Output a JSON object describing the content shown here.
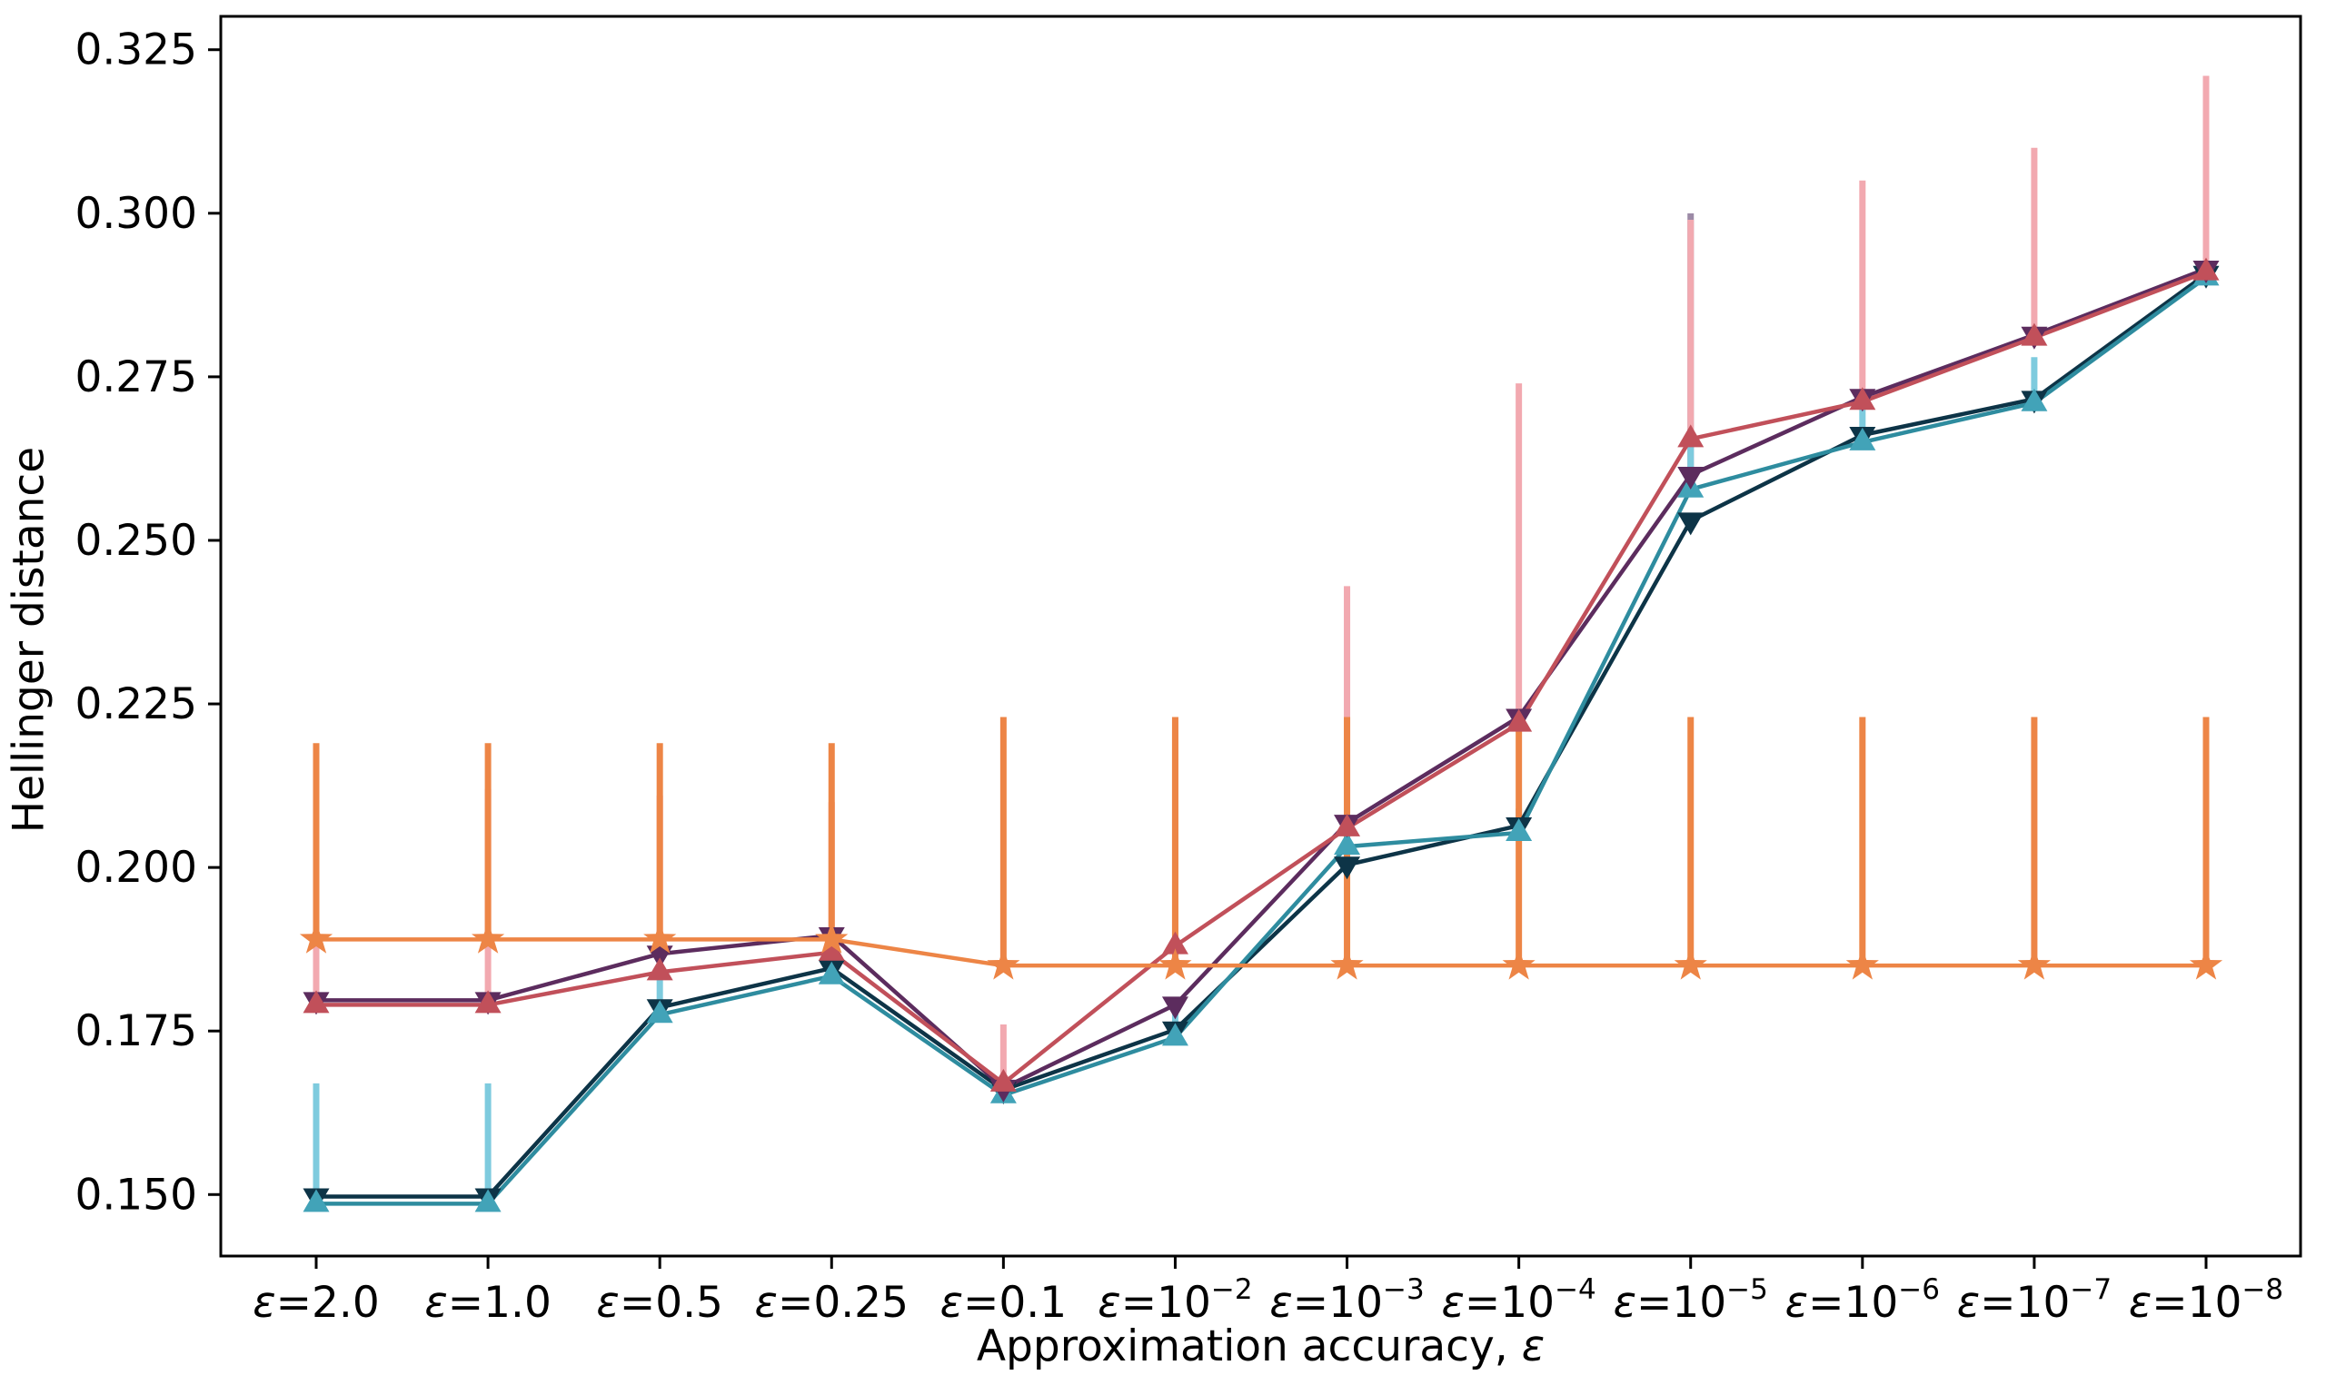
{
  "figure": {
    "ylabel": "Hellinger distance",
    "xlabel_prefix": "Approximation accuracy, ",
    "xlabel_epsilon": "ε"
  },
  "chart_data": {
    "type": "line",
    "title": "",
    "xlabel": "Approximation accuracy, ε",
    "ylabel": "Hellinger distance",
    "grid": false,
    "legend_position": "none",
    "ylim": [
      0.1406,
      0.3301
    ],
    "yticks": [
      0.15,
      0.175,
      0.2,
      0.225,
      0.25,
      0.275,
      0.3,
      0.325
    ],
    "ytick_labels": [
      "0.150",
      "0.175",
      "0.200",
      "0.225",
      "0.250",
      "0.275",
      "0.300",
      "0.325"
    ],
    "categories_text": [
      "ε=2.0",
      "ε=1.0",
      "ε=0.5",
      "ε=0.25",
      "ε=0.1",
      "ε=10−2",
      "ε=10−3",
      "ε=10−4",
      "ε=10−5",
      "ε=10−6",
      "ε=10−7",
      "ε=10−8"
    ],
    "categories": [
      {
        "eps": "ε",
        "base": "2.0",
        "sup": ""
      },
      {
        "eps": "ε",
        "base": "1.0",
        "sup": ""
      },
      {
        "eps": "ε",
        "base": "0.5",
        "sup": ""
      },
      {
        "eps": "ε",
        "base": "0.25",
        "sup": ""
      },
      {
        "eps": "ε",
        "base": "0.1",
        "sup": ""
      },
      {
        "eps": "ε",
        "base": "10",
        "sup": "−2"
      },
      {
        "eps": "ε",
        "base": "10",
        "sup": "−3"
      },
      {
        "eps": "ε",
        "base": "10",
        "sup": "−4"
      },
      {
        "eps": "ε",
        "base": "10",
        "sup": "−5"
      },
      {
        "eps": "ε",
        "base": "10",
        "sup": "−6"
      },
      {
        "eps": "ε",
        "base": "10",
        "sup": "−7"
      },
      {
        "eps": "ε",
        "base": "10",
        "sup": "−8"
      }
    ],
    "series": [
      {
        "id": "orange-star",
        "name": "baseline (orange star)",
        "marker": "star",
        "line_color": "#ED8546",
        "marker_color": "#ED8546",
        "err_color": "#ED8546",
        "values": [
          0.189,
          0.189,
          0.189,
          0.189,
          0.185,
          0.185,
          0.185,
          0.185,
          0.185,
          0.185,
          0.185,
          0.185
        ],
        "err_top": [
          0.219,
          0.219,
          0.219,
          0.219,
          0.223,
          0.223,
          0.223,
          0.223,
          0.223,
          0.223,
          0.223,
          0.223
        ]
      },
      {
        "id": "crimson-up-triangle",
        "name": "crimson (up triangle)",
        "marker": "triangle-up",
        "line_color": "#C1505A",
        "marker_color": "#C1505A",
        "err_color": "#F2A9B0",
        "values": [
          0.179,
          0.179,
          0.184,
          0.187,
          0.167,
          0.188,
          0.206,
          0.222,
          0.2655,
          0.2712,
          0.281,
          0.291
        ],
        "err_top": [
          0.212,
          0.212,
          0.211,
          0.21,
          0.176,
          0.221,
          0.243,
          0.274,
          0.299,
          0.305,
          0.31,
          0.321
        ]
      },
      {
        "id": "plum-down-triangle",
        "name": "plum (down triangle)",
        "marker": "triangle-down",
        "line_color": "#5C2C5E",
        "marker_color": "#5C2C5E",
        "err_color": "#9C8AA6",
        "values": [
          0.1797,
          0.1797,
          0.1868,
          0.1896,
          0.1663,
          0.179,
          0.2068,
          0.223,
          0.26,
          0.2719,
          0.2814,
          0.2915
        ],
        "err_top": [
          null,
          null,
          null,
          null,
          null,
          null,
          null,
          null,
          0.3,
          null,
          null,
          null
        ]
      },
      {
        "id": "navy-down-triangle",
        "name": "navy (down triangle)",
        "marker": "triangle-down",
        "line_color": "#0D3447",
        "marker_color": "#0D3447",
        "err_color": "#0D3447",
        "values": [
          0.1497,
          0.1497,
          0.1786,
          0.1846,
          0.166,
          0.1752,
          0.2004,
          0.2064,
          0.253,
          0.2661,
          0.2716,
          0.2907
        ],
        "err_top": [
          null,
          null,
          null,
          null,
          null,
          null,
          null,
          null,
          null,
          null,
          null,
          null
        ]
      },
      {
        "id": "teal-up-triangle",
        "name": "teal (up triangle)",
        "marker": "triangle-up",
        "line_color": "#2E8C9F",
        "marker_color": "#42A3B8",
        "err_color": "#7ECBDE",
        "values": [
          0.1486,
          0.1486,
          0.1775,
          0.1834,
          0.1652,
          0.174,
          0.2032,
          0.2053,
          0.2578,
          0.265,
          0.271,
          0.2902
        ],
        "err_top": [
          0.167,
          0.167,
          0.184,
          0.189,
          0.168,
          0.179,
          0.206,
          0.209,
          0.266,
          0.27,
          0.278,
          null
        ]
      }
    ],
    "style": {
      "frame_color": "#000000",
      "tick_color": "#000000",
      "text_color": "#000000",
      "background": "#ffffff"
    }
  }
}
